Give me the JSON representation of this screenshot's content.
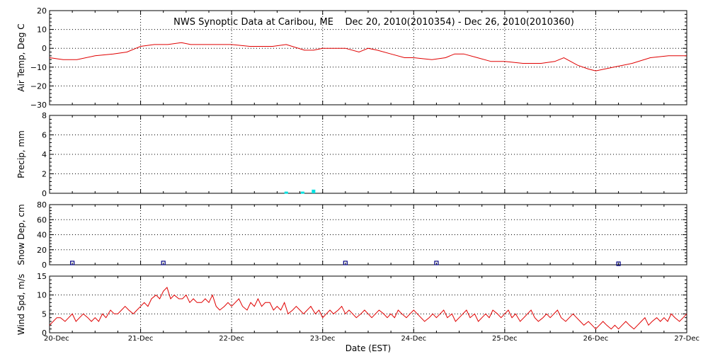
{
  "chart_data": {
    "title": "NWS Synoptic Data at Caribou, ME    Dec 20, 2010(2010354) - Dec 26, 2010(2010360)",
    "type": "line",
    "xlabel": "Date (EST)",
    "x_ticks": [
      "20-Dec",
      "21-Dec",
      "22-Dec",
      "23-Dec",
      "24-Dec",
      "25-Dec",
      "26-Dec",
      "27-Dec"
    ],
    "xlim_days": [
      0,
      7
    ],
    "grid": true,
    "colors": {
      "line": "#e00000",
      "precip": "#00e0e0",
      "snow": "#000080",
      "grid": "#000000"
    },
    "panels": [
      {
        "ylabel": "Air Temp, Deg C",
        "type": "line",
        "ylim": [
          -30,
          20
        ],
        "yticks": [
          "20",
          "10",
          "0",
          "−10",
          "−20",
          "−30"
        ],
        "series": [
          {
            "x": [
              0,
              0.15,
              0.3,
              0.5,
              0.7,
              0.85,
              0.95,
              1.0,
              1.15,
              1.3,
              1.45,
              1.55,
              1.7,
              1.85,
              2.0,
              2.2,
              2.45,
              2.6,
              2.8,
              2.9,
              3.0,
              3.25,
              3.4,
              3.5,
              3.6,
              3.75,
              3.9,
              4.0,
              4.2,
              4.35,
              4.45,
              4.55,
              4.7,
              4.85,
              5.0,
              5.2,
              5.4,
              5.55,
              5.65,
              5.8,
              5.92,
              6.0,
              6.2,
              6.4,
              6.6,
              6.8,
              7.0
            ],
            "y": [
              -5,
              -6,
              -6,
              -4,
              -3,
              -2,
              0,
              1,
              2,
              2,
              3,
              2,
              2,
              2,
              2,
              1,
              1,
              2,
              -1,
              -1,
              0,
              0,
              -2,
              0,
              -1,
              -3,
              -5,
              -5,
              -6,
              -5,
              -3,
              -3,
              -5,
              -7,
              -7,
              -8,
              -8,
              -7,
              -5,
              -9,
              -11,
              -12,
              -10,
              -8,
              -5,
              -4,
              -4
            ]
          }
        ]
      },
      {
        "ylabel": "Precip, mm",
        "type": "bar",
        "ylim": [
          0,
          8
        ],
        "yticks": [
          "8",
          "6",
          "4",
          "2",
          "0"
        ],
        "series": [
          {
            "x": [
              2.6,
              2.78,
              2.9
            ],
            "values": [
              0.1,
              0.1,
              0.3
            ]
          }
        ]
      },
      {
        "ylabel": "Snow Dep, cm",
        "type": "scatter",
        "ylim": [
          0,
          80
        ],
        "yticks": [
          "80",
          "60",
          "40",
          "20",
          "0"
        ],
        "series": [
          {
            "x": [
              0.25,
              1.25,
              3.25,
              4.25,
              6.25
            ],
            "values": [
              1,
              1,
              1,
              1,
              0
            ]
          }
        ]
      },
      {
        "ylabel": "Wind Spd, m/s",
        "type": "line",
        "ylim": [
          0,
          15
        ],
        "yticks": [
          "15",
          "10",
          "5",
          "0"
        ],
        "series": [
          {
            "x": [
              0.0,
              0.04,
              0.08,
              0.12,
              0.17,
              0.21,
              0.25,
              0.29,
              0.33,
              0.37,
              0.42,
              0.46,
              0.5,
              0.54,
              0.58,
              0.62,
              0.67,
              0.71,
              0.75,
              0.79,
              0.83,
              0.87,
              0.92,
              0.96,
              1.0,
              1.04,
              1.08,
              1.12,
              1.17,
              1.21,
              1.25,
              1.29,
              1.33,
              1.37,
              1.42,
              1.46,
              1.5,
              1.54,
              1.58,
              1.62,
              1.67,
              1.71,
              1.75,
              1.79,
              1.83,
              1.87,
              1.92,
              1.96,
              2.0,
              2.04,
              2.08,
              2.12,
              2.17,
              2.21,
              2.25,
              2.29,
              2.33,
              2.37,
              2.42,
              2.46,
              2.5,
              2.54,
              2.58,
              2.62,
              2.67,
              2.71,
              2.75,
              2.79,
              2.83,
              2.87,
              2.92,
              2.96,
              3.0,
              3.04,
              3.08,
              3.12,
              3.17,
              3.21,
              3.25,
              3.29,
              3.33,
              3.37,
              3.42,
              3.46,
              3.5,
              3.54,
              3.58,
              3.62,
              3.67,
              3.71,
              3.75,
              3.79,
              3.83,
              3.87,
              3.92,
              3.96,
              4.0,
              4.04,
              4.08,
              4.12,
              4.17,
              4.21,
              4.25,
              4.29,
              4.33,
              4.37,
              4.42,
              4.46,
              4.5,
              4.54,
              4.58,
              4.62,
              4.67,
              4.71,
              4.75,
              4.79,
              4.83,
              4.87,
              4.92,
              4.96,
              5.0,
              5.04,
              5.08,
              5.12,
              5.17,
              5.21,
              5.25,
              5.29,
              5.33,
              5.37,
              5.42,
              5.46,
              5.5,
              5.54,
              5.58,
              5.62,
              5.67,
              5.71,
              5.75,
              5.79,
              5.83,
              5.87,
              5.92,
              5.96,
              6.0,
              6.04,
              6.08,
              6.12,
              6.17,
              6.21,
              6.25,
              6.29,
              6.33,
              6.37,
              6.42,
              6.46,
              6.5,
              6.54,
              6.58,
              6.62,
              6.67,
              6.71,
              6.75,
              6.79,
              6.83,
              6.87,
              6.92,
              6.96,
              7.0
            ],
            "y": [
              2,
              3,
              4,
              4,
              3,
              4,
              5,
              3,
              4,
              5,
              4,
              3,
              4,
              3,
              5,
              4,
              6,
              5,
              5,
              6,
              7,
              6,
              5,
              6,
              7,
              8,
              7,
              9,
              10,
              9,
              11,
              12,
              9,
              10,
              9,
              9,
              10,
              8,
              9,
              8,
              8,
              9,
              8,
              10,
              7,
              6,
              7,
              8,
              7,
              8,
              9,
              7,
              6,
              8,
              7,
              9,
              7,
              8,
              8,
              6,
              7,
              6,
              8,
              5,
              6,
              7,
              6,
              5,
              6,
              7,
              5,
              6,
              4,
              5,
              6,
              5,
              6,
              7,
              5,
              6,
              5,
              4,
              5,
              6,
              5,
              4,
              5,
              6,
              5,
              4,
              5,
              4,
              6,
              5,
              4,
              5,
              6,
              5,
              4,
              3,
              4,
              5,
              4,
              5,
              6,
              4,
              5,
              3,
              4,
              5,
              6,
              4,
              5,
              3,
              4,
              5,
              4,
              6,
              5,
              4,
              5,
              6,
              4,
              5,
              3,
              4,
              5,
              6,
              4,
              3,
              4,
              5,
              4,
              5,
              6,
              4,
              3,
              4,
              5,
              4,
              3,
              2,
              3,
              2,
              1,
              2,
              3,
              2,
              1,
              2,
              1,
              2,
              3,
              2,
              1,
              2,
              3,
              4,
              2,
              3,
              4,
              3,
              4,
              3,
              5,
              4,
              3,
              4,
              5
            ]
          }
        ]
      }
    ]
  }
}
